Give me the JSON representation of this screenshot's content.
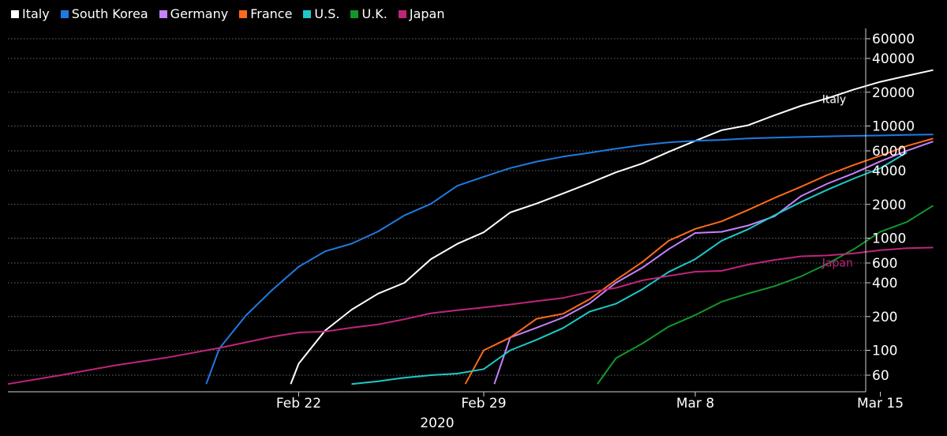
{
  "chart_data": {
    "type": "line",
    "title": "",
    "xlabel": "2020",
    "ylabel": "",
    "yscale": "log",
    "ylim": [
      50,
      80000
    ],
    "x_ticks": [
      {
        "label": "Feb 22",
        "day": 22
      },
      {
        "label": "Feb 29",
        "day": 29
      },
      {
        "label": "Mar 8",
        "day": 37
      },
      {
        "label": "Mar 15",
        "day": 44
      }
    ],
    "y_ticks": [
      60,
      100,
      200,
      400,
      600,
      1000,
      2000,
      4000,
      6000,
      10000,
      20000,
      40000,
      60000
    ],
    "gridlines": [
      60,
      100,
      200,
      400,
      600,
      1000,
      2000,
      4000,
      6000,
      10000,
      20000,
      40000,
      60000
    ],
    "grid": true,
    "legend_position": "top-left",
    "series": [
      {
        "name": "Italy",
        "color": "#ffffff",
        "points": [
          [
            21.7,
            50
          ],
          [
            22,
            76
          ],
          [
            23,
            150
          ],
          [
            24,
            230
          ],
          [
            25,
            320
          ],
          [
            26,
            400
          ],
          [
            27,
            650
          ],
          [
            28,
            890
          ],
          [
            29,
            1128
          ],
          [
            30,
            1694
          ],
          [
            31,
            2036
          ],
          [
            32,
            2502
          ],
          [
            33,
            3089
          ],
          [
            34,
            3858
          ],
          [
            35,
            4636
          ],
          [
            36,
            5883
          ],
          [
            37,
            7375
          ],
          [
            38,
            9172
          ],
          [
            39,
            10149
          ],
          [
            40,
            12462
          ],
          [
            41,
            15113
          ],
          [
            42,
            17660
          ],
          [
            43,
            21157
          ],
          [
            44,
            24747
          ],
          [
            45,
            27980
          ],
          [
            46,
            31506
          ]
        ]
      },
      {
        "name": "South Korea",
        "color": "#1f7ae0",
        "points": [
          [
            18.5,
            50
          ],
          [
            19,
            104
          ],
          [
            20,
            204
          ],
          [
            21,
            346
          ],
          [
            22,
            556
          ],
          [
            23,
            763
          ],
          [
            24,
            893
          ],
          [
            25,
            1146
          ],
          [
            26,
            1595
          ],
          [
            27,
            2022
          ],
          [
            28,
            2931
          ],
          [
            29,
            3526
          ],
          [
            30,
            4212
          ],
          [
            31,
            4812
          ],
          [
            32,
            5328
          ],
          [
            33,
            5766
          ],
          [
            34,
            6284
          ],
          [
            35,
            6767
          ],
          [
            36,
            7134
          ],
          [
            37,
            7382
          ],
          [
            38,
            7513
          ],
          [
            39,
            7755
          ],
          [
            40,
            7869
          ],
          [
            41,
            7979
          ],
          [
            42,
            8086
          ],
          [
            43,
            8162
          ],
          [
            44,
            8236
          ],
          [
            45,
            8320
          ],
          [
            46,
            8413
          ]
        ]
      },
      {
        "name": "Germany",
        "color": "#c780ff",
        "points": [
          [
            29.4,
            50
          ],
          [
            30,
            130
          ],
          [
            31,
            159
          ],
          [
            32,
            196
          ],
          [
            33,
            262
          ],
          [
            34,
            400
          ],
          [
            35,
            545
          ],
          [
            36,
            800
          ],
          [
            37,
            1112
          ],
          [
            38,
            1139
          ],
          [
            39,
            1296
          ],
          [
            40,
            1567
          ],
          [
            41,
            2369
          ],
          [
            42,
            3062
          ],
          [
            43,
            3795
          ],
          [
            44,
            4838
          ],
          [
            45,
            6012
          ],
          [
            46,
            7272
          ]
        ]
      },
      {
        "name": "France",
        "color": "#ff6a1a",
        "points": [
          [
            28.3,
            50
          ],
          [
            29,
            100
          ],
          [
            30,
            130
          ],
          [
            31,
            191
          ],
          [
            32,
            212
          ],
          [
            33,
            285
          ],
          [
            34,
            423
          ],
          [
            35,
            613
          ],
          [
            36,
            949
          ],
          [
            37,
            1209
          ],
          [
            38,
            1412
          ],
          [
            39,
            1784
          ],
          [
            40,
            2281
          ],
          [
            41,
            2876
          ],
          [
            42,
            3661
          ],
          [
            43,
            4499
          ],
          [
            44,
            5423
          ],
          [
            45,
            6633
          ],
          [
            46,
            7730
          ]
        ]
      },
      {
        "name": "U.S.",
        "color": "#1fc8c8",
        "points": [
          [
            24,
            50
          ],
          [
            25,
            53
          ],
          [
            26,
            57
          ],
          [
            27,
            60
          ],
          [
            28,
            62
          ],
          [
            29,
            68
          ],
          [
            30,
            100
          ],
          [
            31,
            124
          ],
          [
            32,
            158
          ],
          [
            33,
            221
          ],
          [
            34,
            260
          ],
          [
            35,
            350
          ],
          [
            36,
            500
          ],
          [
            37,
            650
          ],
          [
            38,
            950
          ],
          [
            39,
            1200
          ],
          [
            40,
            1600
          ],
          [
            41,
            2100
          ],
          [
            42,
            2700
          ],
          [
            43,
            3400
          ],
          [
            44,
            4200
          ],
          [
            45,
            5800
          ]
        ]
      },
      {
        "name": "U.K.",
        "color": "#12962a",
        "points": [
          [
            33.3,
            50
          ],
          [
            34,
            85
          ],
          [
            35,
            115
          ],
          [
            36,
            163
          ],
          [
            37,
            206
          ],
          [
            38,
            271
          ],
          [
            39,
            321
          ],
          [
            40,
            373
          ],
          [
            41,
            456
          ],
          [
            42,
            590
          ],
          [
            43,
            798
          ],
          [
            44,
            1140
          ],
          [
            45,
            1391
          ],
          [
            46,
            1950
          ]
        ]
      },
      {
        "name": "Japan",
        "color": "#c0247a",
        "points": [
          [
            11,
            50
          ],
          [
            13,
            60
          ],
          [
            15,
            73
          ],
          [
            17,
            86
          ],
          [
            19,
            105
          ],
          [
            21,
            132
          ],
          [
            22,
            144
          ],
          [
            23,
            147
          ],
          [
            24,
            159
          ],
          [
            25,
            170
          ],
          [
            26,
            189
          ],
          [
            27,
            214
          ],
          [
            28,
            228
          ],
          [
            29,
            241
          ],
          [
            30,
            256
          ],
          [
            31,
            274
          ],
          [
            32,
            293
          ],
          [
            33,
            331
          ],
          [
            34,
            360
          ],
          [
            35,
            420
          ],
          [
            36,
            461
          ],
          [
            37,
            502
          ],
          [
            38,
            511
          ],
          [
            39,
            581
          ],
          [
            40,
            639
          ],
          [
            41,
            689
          ],
          [
            42,
            701
          ],
          [
            43,
            733
          ],
          [
            44,
            780
          ],
          [
            45,
            814
          ],
          [
            46,
            825
          ]
        ]
      }
    ],
    "annotations": [
      {
        "text": "Italy",
        "series": "Italy",
        "day": 41.8,
        "value": 16000
      },
      {
        "text": "Japan",
        "series": "Japan",
        "day": 41.8,
        "value": 560
      }
    ]
  }
}
